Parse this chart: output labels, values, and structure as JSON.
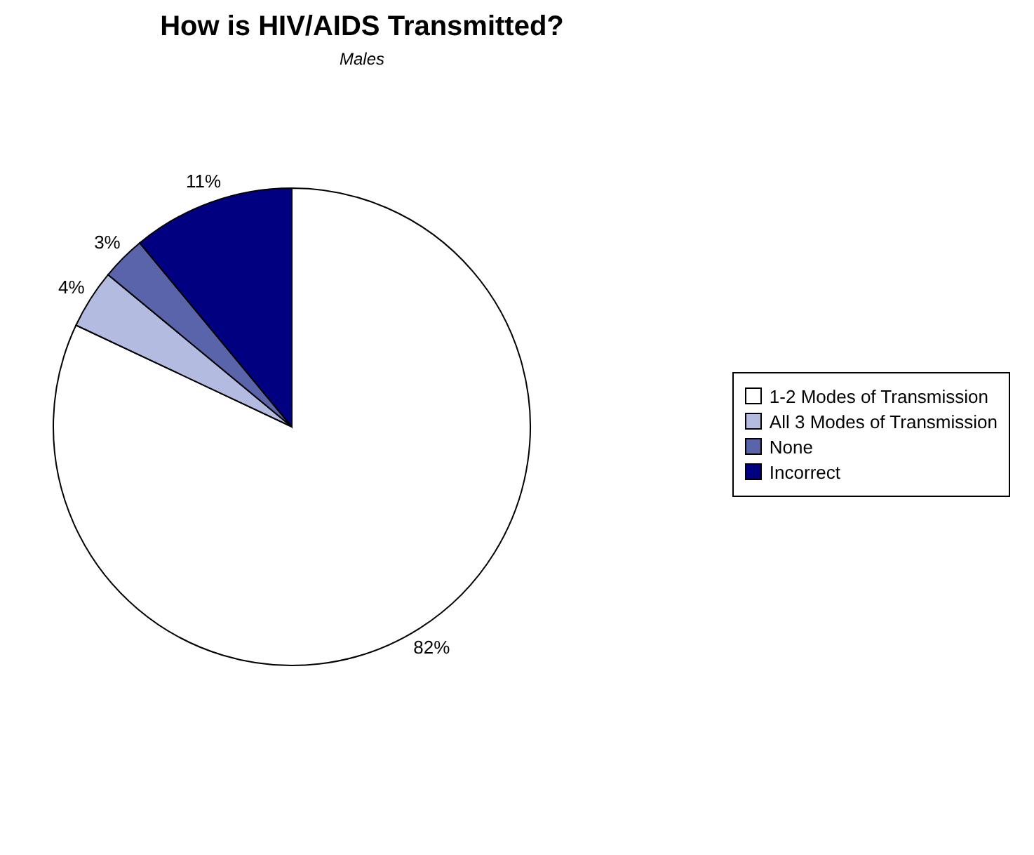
{
  "chart_data": {
    "type": "pie",
    "title": "How is HIV/AIDS Transmitted?",
    "subtitle": "Males",
    "categories": [
      "1-2 Modes of Transmission",
      "All 3 Modes of Transmission",
      "None",
      "Incorrect"
    ],
    "values": [
      82,
      4,
      3,
      11
    ],
    "value_labels": [
      "82%",
      "4%",
      "3%",
      "11%"
    ],
    "colors": [
      "#ffffff",
      "#b4bbe0",
      "#5a64aa",
      "#000080"
    ],
    "legend": "right"
  }
}
